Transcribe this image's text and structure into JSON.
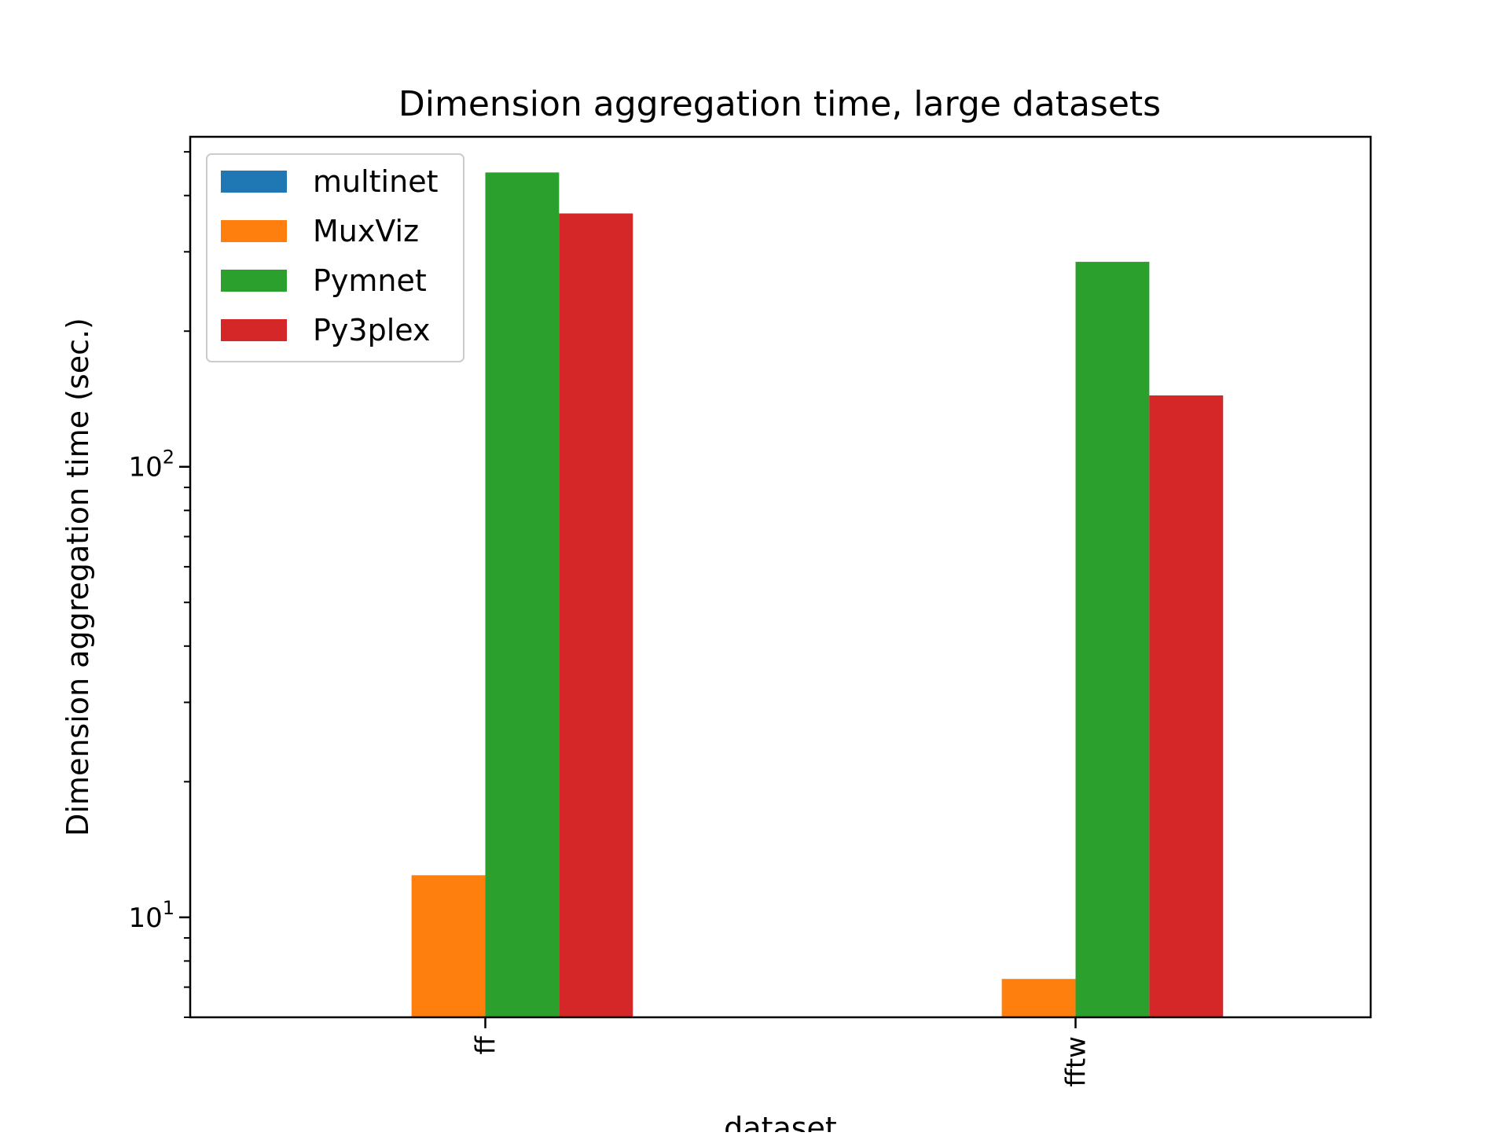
{
  "chart_data": {
    "type": "bar",
    "title": "Dimension aggregation time, large datasets",
    "xlabel": "dataset",
    "ylabel": "Dimension aggregation time (sec.)",
    "y_scale": "log",
    "ylim": [
      6.0,
      540
    ],
    "categories": [
      "ff",
      "fftw"
    ],
    "series": [
      {
        "name": "multinet",
        "color": "#1f77b4",
        "values": [
          null,
          null
        ]
      },
      {
        "name": "MuxViz",
        "color": "#ff7f0e",
        "values": [
          12.4,
          7.3
        ]
      },
      {
        "name": "Pymnet",
        "color": "#2ca02c",
        "values": [
          450,
          285
        ]
      },
      {
        "name": "Py3plex",
        "color": "#d62728",
        "values": [
          365,
          144
        ]
      }
    ],
    "y_ticks": [
      {
        "value": 10,
        "base": "10",
        "exp": "1"
      },
      {
        "value": 100,
        "base": "10",
        "exp": "2"
      }
    ],
    "legend_position": "upper-left",
    "grid": false
  }
}
